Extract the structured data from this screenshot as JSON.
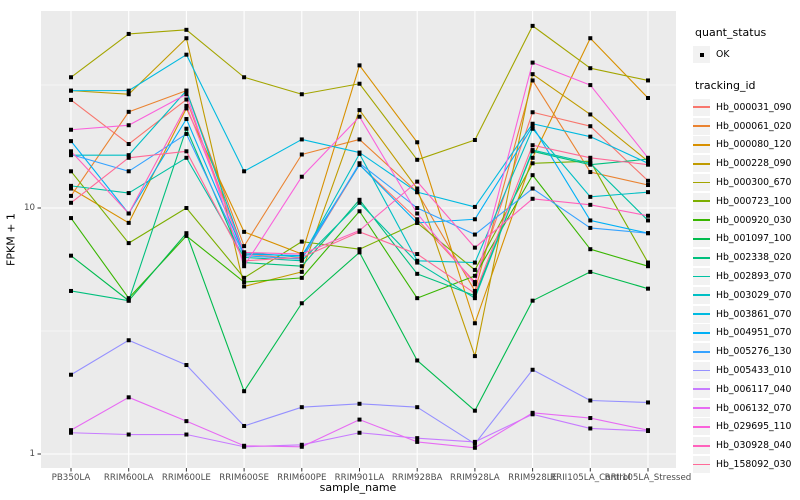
{
  "chart_data": {
    "type": "line",
    "title": "",
    "xlabel": "sample_name",
    "ylabel": "FPKM + 1",
    "yscale": "log10",
    "ylim": [
      0.88,
      63
    ],
    "yticks": [
      1,
      10
    ],
    "ytick_labels": [
      "1",
      "10"
    ],
    "yminor": [
      3.162,
      31.62
    ],
    "grid": true,
    "legend_position": "right",
    "marker": "black-square",
    "categories": [
      "PB350LA",
      "RRIM600LA",
      "RRIM600LE",
      "RRIM600SE",
      "RRIM600PE",
      "RRIM901LA",
      "RRIM928BA",
      "RRIM928LA",
      "RRIM928LE",
      "RRII105LA_Control",
      "RRII105LA_Stressed"
    ],
    "series": [
      {
        "name": "Hb_000031_090",
        "color": "#F8766D",
        "values": [
          27.5,
          18.2,
          27.6,
          6.5,
          6.2,
          15.0,
          9.0,
          5.0,
          24.5,
          21.5,
          12.9
        ]
      },
      {
        "name": "Hb_000061_020",
        "color": "#EA8331",
        "values": [
          11.2,
          24.6,
          30.0,
          7.0,
          16.5,
          19.0,
          11.6,
          4.6,
          33.0,
          14.0,
          12.4
        ]
      },
      {
        "name": "Hb_000080_120",
        "color": "#D89000",
        "values": [
          12.0,
          8.7,
          25.4,
          8.0,
          6.5,
          38.0,
          18.5,
          3.4,
          16.0,
          49.0,
          28.0
        ]
      },
      {
        "name": "Hb_000228_090",
        "color": "#C09B00",
        "values": [
          30.0,
          29.0,
          49.0,
          4.8,
          5.5,
          25.0,
          12.0,
          2.5,
          35.0,
          24.0,
          15.5
        ]
      },
      {
        "name": "Hb_000300_670",
        "color": "#A3A500",
        "values": [
          34.0,
          51.0,
          53.0,
          34.0,
          29.0,
          32.0,
          15.7,
          18.9,
          55.0,
          37.0,
          33.0
        ]
      },
      {
        "name": "Hb_000723_100",
        "color": "#7CAE00",
        "values": [
          14.1,
          7.2,
          10.0,
          5.2,
          7.3,
          6.8,
          8.7,
          5.6,
          15.2,
          15.5,
          6.0
        ]
      },
      {
        "name": "Hb_000920_030",
        "color": "#39B600",
        "values": [
          9.1,
          4.3,
          7.7,
          5.0,
          5.2,
          9.7,
          4.3,
          5.3,
          13.6,
          6.8,
          5.8
        ]
      },
      {
        "name": "Hb_001097_100",
        "color": "#00BB4E",
        "values": [
          6.4,
          4.2,
          7.9,
          1.8,
          4.1,
          6.6,
          2.4,
          1.5,
          4.2,
          5.5,
          4.7
        ]
      },
      {
        "name": "Hb_002338_020",
        "color": "#00BF7D",
        "values": [
          4.6,
          4.2,
          21.0,
          6.0,
          5.8,
          10.8,
          5.4,
          4.4,
          17.0,
          15.0,
          15.8
        ]
      },
      {
        "name": "Hb_002893_070",
        "color": "#00C1A3",
        "values": [
          12.3,
          11.5,
          16.0,
          6.3,
          6.1,
          10.5,
          6.0,
          4.3,
          17.2,
          15.2,
          8.9
        ]
      },
      {
        "name": "Hb_003029_070",
        "color": "#00BFC4",
        "values": [
          16.4,
          16.4,
          30.0,
          6.6,
          6.3,
          16.6,
          6.1,
          6.0,
          21.0,
          11.1,
          11.6
        ]
      },
      {
        "name": "Hb_003861_070",
        "color": "#00BAE0",
        "values": [
          30.0,
          30.0,
          42.0,
          14.1,
          19.0,
          16.8,
          11.6,
          10.1,
          22.0,
          19.5,
          15.2
        ]
      },
      {
        "name": "Hb_004951_070",
        "color": "#00B0F6",
        "values": [
          18.7,
          9.5,
          23.0,
          6.5,
          6.4,
          15.0,
          8.7,
          9.0,
          21.5,
          8.9,
          7.9
        ]
      },
      {
        "name": "Hb_005276_130",
        "color": "#35A2FF",
        "values": [
          16.5,
          14.1,
          20.0,
          6.4,
          6.2,
          15.2,
          10.0,
          7.8,
          12.0,
          8.3,
          7.9
        ]
      },
      {
        "name": "Hb_005433_010",
        "color": "#9590FF",
        "values": [
          2.1,
          2.9,
          2.3,
          1.3,
          1.55,
          1.6,
          1.55,
          1.1,
          2.2,
          1.65,
          1.62
        ]
      },
      {
        "name": "Hb_006117_040",
        "color": "#C77CFF",
        "values": [
          1.22,
          1.2,
          1.2,
          1.07,
          1.09,
          1.22,
          1.16,
          1.12,
          1.45,
          1.27,
          1.24
        ]
      },
      {
        "name": "Hb_006132_070",
        "color": "#E76BF3",
        "values": [
          1.25,
          1.7,
          1.36,
          1.08,
          1.07,
          1.38,
          1.12,
          1.06,
          1.47,
          1.4,
          1.25
        ]
      },
      {
        "name": "Hb_029695_110",
        "color": "#FA62DB",
        "values": [
          20.8,
          21.7,
          29.0,
          5.8,
          13.4,
          23.5,
          9.5,
          4.9,
          39.0,
          31.6,
          16.0
        ]
      },
      {
        "name": "Hb_030928_040",
        "color": "#FF62BC",
        "values": [
          17.0,
          9.5,
          26.0,
          6.6,
          6.5,
          8.1,
          12.8,
          6.9,
          10.9,
          10.3,
          9.3
        ]
      },
      {
        "name": "Hb_158092_030",
        "color": "#FF6A98",
        "values": [
          10.5,
          16.0,
          17.0,
          6.1,
          6.3,
          8.0,
          6.5,
          4.5,
          18.0,
          16.0,
          15.0
        ]
      }
    ]
  },
  "axes": {
    "x_title": "sample_name",
    "y_title": "FPKM + 1"
  },
  "legend": {
    "quant_status_title": "quant_status",
    "quant_status_items": [
      {
        "label": "OK"
      }
    ],
    "tracking_id_title": "tracking_id"
  },
  "colors": {
    "panel_bg": "#EBEBEB",
    "grid": "#FFFFFF",
    "key_bg": "#F2F2F2",
    "tick_label": "#4D4D4D",
    "tick_mark": "#333333",
    "marker": "#000000"
  }
}
